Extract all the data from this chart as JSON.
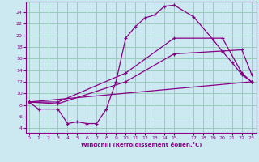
{
  "xlabel": "Windchill (Refroidissement éolien,°C)",
  "bg_color": "#cce8f0",
  "grid_color": "#99ccbb",
  "line_color": "#880088",
  "xticks": [
    0,
    1,
    2,
    3,
    4,
    5,
    6,
    7,
    8,
    9,
    10,
    11,
    12,
    13,
    14,
    15,
    17,
    18,
    19,
    20,
    21,
    22,
    23
  ],
  "yticks": [
    4,
    6,
    8,
    10,
    12,
    14,
    16,
    18,
    20,
    22,
    24
  ],
  "xlim": [
    -0.3,
    23.5
  ],
  "ylim": [
    3.2,
    25.8
  ],
  "line1_x": [
    0,
    1,
    3,
    4,
    5,
    6,
    7,
    8,
    9,
    10,
    11,
    12,
    13,
    14,
    15,
    17,
    19,
    20,
    21,
    22,
    23
  ],
  "line1_y": [
    8.5,
    7.3,
    7.3,
    4.8,
    5.1,
    4.8,
    4.8,
    7.3,
    12.0,
    19.5,
    21.5,
    23.0,
    23.5,
    25.0,
    25.2,
    23.2,
    19.3,
    17.2,
    15.3,
    13.2,
    12.0
  ],
  "line2_x": [
    0,
    3,
    10,
    15,
    20,
    22,
    23
  ],
  "line2_y": [
    8.5,
    8.2,
    12.0,
    16.8,
    17.3,
    17.5,
    13.3
  ],
  "line3_x": [
    0,
    3,
    10,
    15,
    20,
    22,
    23
  ],
  "line3_y": [
    8.5,
    8.5,
    13.5,
    19.5,
    19.5,
    13.5,
    12.0
  ],
  "line4_x": [
    0,
    23
  ],
  "line4_y": [
    8.5,
    12.0
  ]
}
